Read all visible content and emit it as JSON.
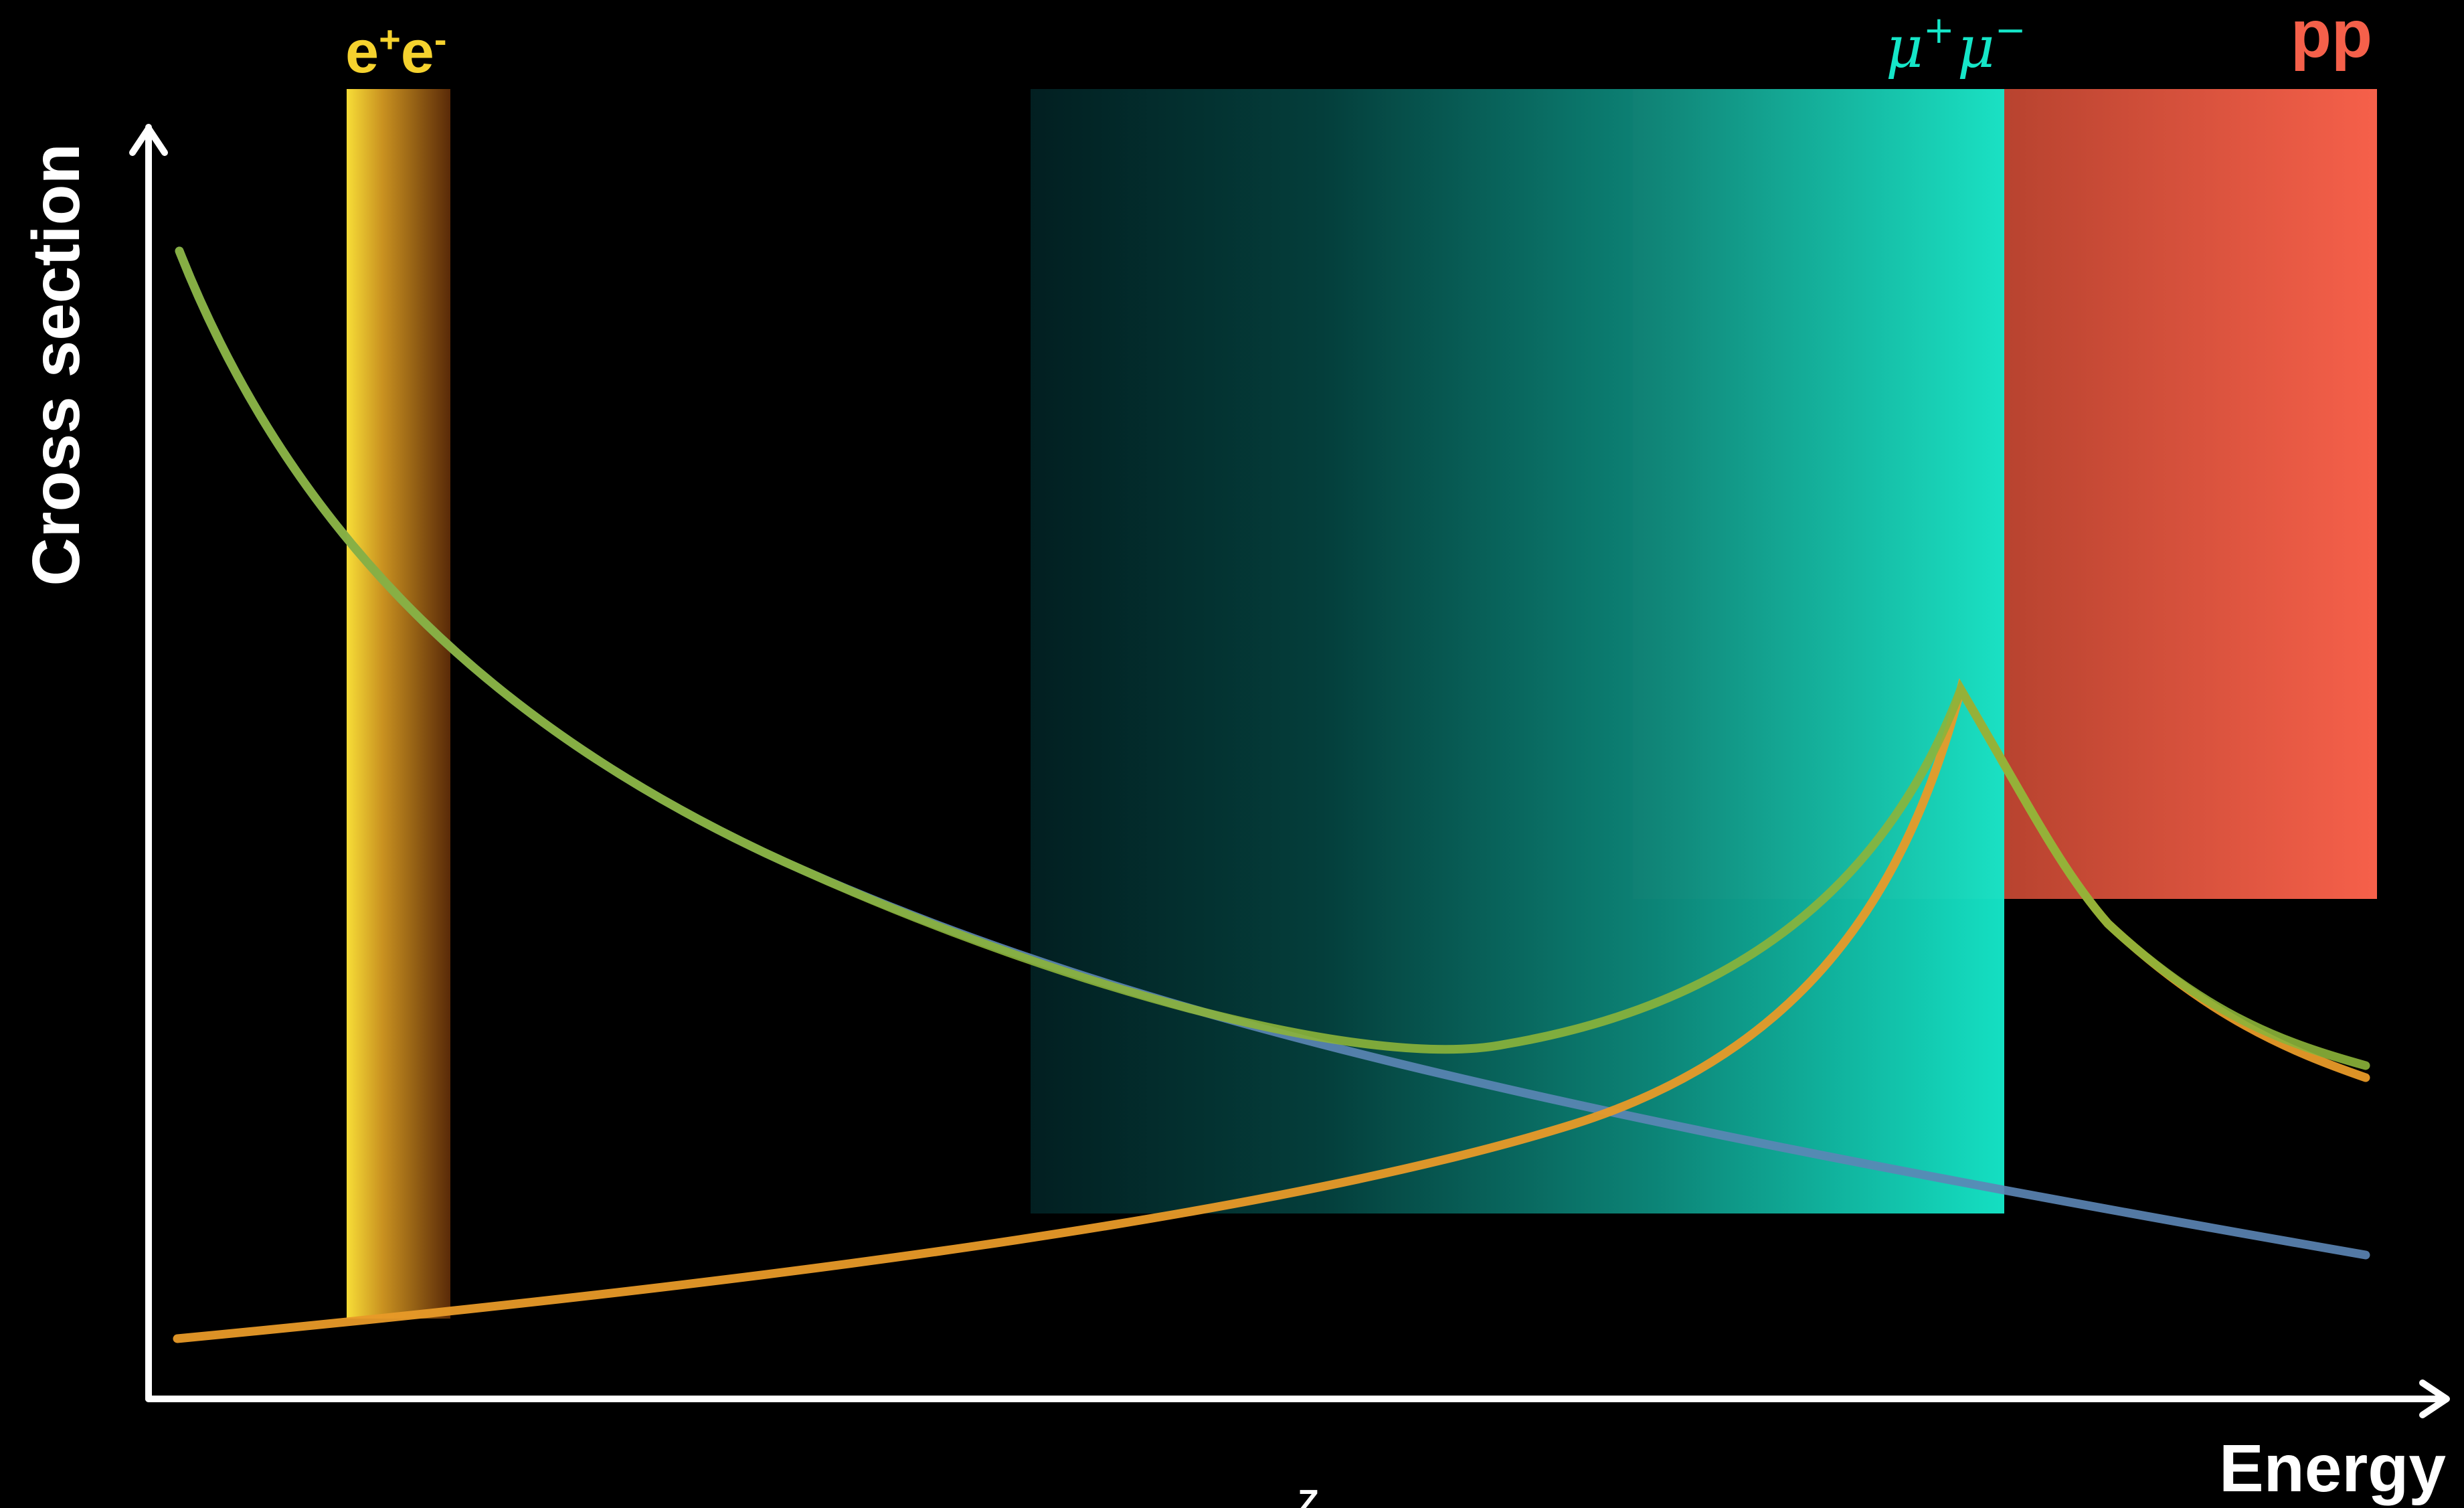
{
  "axes": {
    "y_label": "Cross section",
    "x_label": "Energy"
  },
  "regions": {
    "ee": {
      "base": "e",
      "sup1": "+",
      "base2": "e",
      "sup2": "-"
    },
    "mumu": {
      "base": "μ",
      "sup1": "+",
      "base2": "μ",
      "sup2": "−"
    },
    "pp": {
      "label": "pp"
    }
  },
  "footer_glyph": "Z",
  "colors": {
    "background": "#000000",
    "axis": "#ffffff",
    "ee": "#f5d22e",
    "mumu": "#15e6c8",
    "pp": "#f5604a",
    "curve_green": "#8cb43a",
    "curve_orange": "#e89a28",
    "curve_blue": "#5c86b6"
  }
}
